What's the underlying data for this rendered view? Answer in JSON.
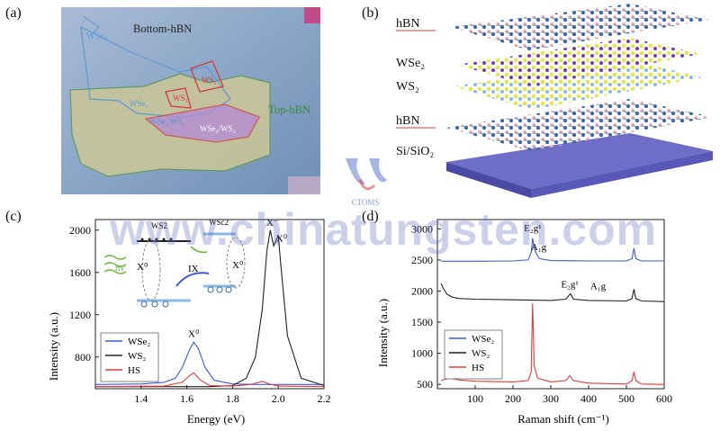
{
  "panels": {
    "a": {
      "label": "(a)",
      "texts": {
        "bottom_hbn": "Bottom-hBN",
        "top_hbn": "Top-hBN",
        "wse2_left": "WSe₂",
        "wse2_mid": "WSe₂",
        "ws2_top": "WS₂",
        "ws2_mid": "WS₂",
        "ws2_lower": "WSe₂/WS₂",
        "heterostructure": "WSe₂/WS₂"
      },
      "colors": {
        "background": "#8aa6c6",
        "flake_outline": "#5a9a5a",
        "ws2_outline": "#d23a3a",
        "wse2_outline": "#5a9ad6",
        "overlap": "#b38ad6"
      }
    },
    "b": {
      "label": "(b)",
      "layers": [
        "hBN",
        "WSe₂",
        "WS₂",
        "hBN",
        "Si/SiO₂"
      ],
      "colors": {
        "substrate": "#6e6ec8",
        "hbn_atom": "#e8b6c6",
        "hbn_bond": "#5a78a6",
        "wse2_atom": "#e6e84a",
        "ws2_atom": "#8ab8e6",
        "metal": "#7a3ab8"
      }
    },
    "c": {
      "label": "(c)",
      "chart_data": {
        "type": "line",
        "xlabel": "Energy (eV)",
        "ylabel": "Intensity (a.u.)",
        "xlim": [
          1.2,
          2.2
        ],
        "ylim": [
          500,
          2100
        ],
        "xticks": [
          1.4,
          1.6,
          1.8,
          2.0,
          2.2
        ],
        "yticks": [
          800,
          1200,
          1600,
          2000
        ],
        "series": [
          {
            "name": "WSe₂",
            "color": "#3a5ad6",
            "x": [
              1.2,
              1.4,
              1.5,
              1.55,
              1.58,
              1.61,
              1.63,
              1.65,
              1.68,
              1.72,
              1.8,
              1.9,
              2.0,
              2.2
            ],
            "y": [
              540,
              545,
              560,
              600,
              700,
              860,
              940,
              880,
              700,
              580,
              545,
              540,
              540,
              540
            ]
          },
          {
            "name": "WS₂",
            "color": "#222222",
            "x": [
              1.2,
              1.5,
              1.7,
              1.8,
              1.86,
              1.9,
              1.93,
              1.95,
              1.965,
              1.98,
              1.99,
              2.0,
              2.01,
              2.04,
              2.1,
              2.2
            ],
            "y": [
              520,
              520,
              520,
              530,
              600,
              800,
              1250,
              1800,
              2000,
              1850,
              1900,
              1950,
              1700,
              1000,
              600,
              530
            ]
          },
          {
            "name": "HS",
            "color": "#e23a3a",
            "x": [
              1.2,
              1.5,
              1.58,
              1.61,
              1.63,
              1.66,
              1.7,
              1.8,
              1.88,
              1.93,
              1.96,
              2.0,
              2.2
            ],
            "y": [
              520,
              525,
              560,
              620,
              650,
              580,
              530,
              525,
              540,
              570,
              545,
              525,
              520
            ]
          }
        ],
        "annotations": [
          {
            "text": "X⁻",
            "x": 1.975,
            "y": 2040
          },
          {
            "text": "X⁰",
            "x": 2.015,
            "y": 1890
          },
          {
            "text": "X⁰",
            "x": 1.63,
            "y": 990
          }
        ]
      },
      "inset": {
        "ws2_label": "WS2",
        "wse2_label": "WSc2",
        "x0_left": "X⁰",
        "x0_right": "X⁰",
        "ix": "IX",
        "hv": "hν"
      }
    },
    "d": {
      "label": "(d)",
      "chart_data": {
        "type": "line",
        "xlabel": "Raman shift (cm⁻¹)",
        "ylabel": "Intensity (a.u.)",
        "xlim": [
          0,
          600
        ],
        "ylim": [
          430,
          3150
        ],
        "xticks": [
          100,
          200,
          300,
          400,
          500,
          600
        ],
        "yticks": [
          500,
          1000,
          1500,
          2000,
          2500,
          3000
        ],
        "series": [
          {
            "name": "WSe₂",
            "color": "#3a5ad6",
            "x": [
              10,
              100,
              200,
              240,
              248,
              252,
              256,
              262,
              270,
              300,
              400,
              500,
              515,
              520,
              525,
              540,
              600
            ],
            "y": [
              2480,
              2480,
              2485,
              2500,
              2620,
              2850,
              2700,
              2600,
              2520,
              2490,
              2485,
              2485,
              2520,
              2690,
              2520,
              2485,
              2485
            ]
          },
          {
            "name": "WS₂",
            "color": "#222222",
            "x": [
              10,
              15,
              25,
              40,
              60,
              100,
              200,
              300,
              340,
              352,
              360,
              400,
              500,
              515,
              520,
              525,
              540,
              600
            ],
            "y": [
              2120,
              2050,
              1950,
              1900,
              1880,
              1870,
              1860,
              1850,
              1870,
              1960,
              1870,
              1850,
              1840,
              1880,
              2030,
              1880,
              1840,
              1830
            ]
          },
          {
            "name": "HS",
            "color": "#e23a3a",
            "x": [
              10,
              30,
              60,
              100,
              200,
              240,
              248,
              252,
              256,
              265,
              300,
              340,
              350,
              360,
              400,
              500,
              515,
              520,
              525,
              540,
              600
            ],
            "y": [
              560,
              600,
              570,
              550,
              540,
              560,
              700,
              1800,
              800,
              600,
              540,
              560,
              640,
              560,
              520,
              505,
              560,
              700,
              560,
              505,
              500
            ]
          }
        ],
        "annotations": [
          {
            "text": "E₂g¹",
            "x": 252,
            "y": 2960
          },
          {
            "text": "A₁g",
            "x": 268,
            "y": 2660
          },
          {
            "text": "E₂g¹",
            "x": 350,
            "y": 2060
          },
          {
            "text": "A₁g",
            "x": 425,
            "y": 2030
          }
        ]
      }
    }
  },
  "watermark": {
    "text": "www.chinatungsten.com",
    "logo_text": "CTOMS"
  }
}
